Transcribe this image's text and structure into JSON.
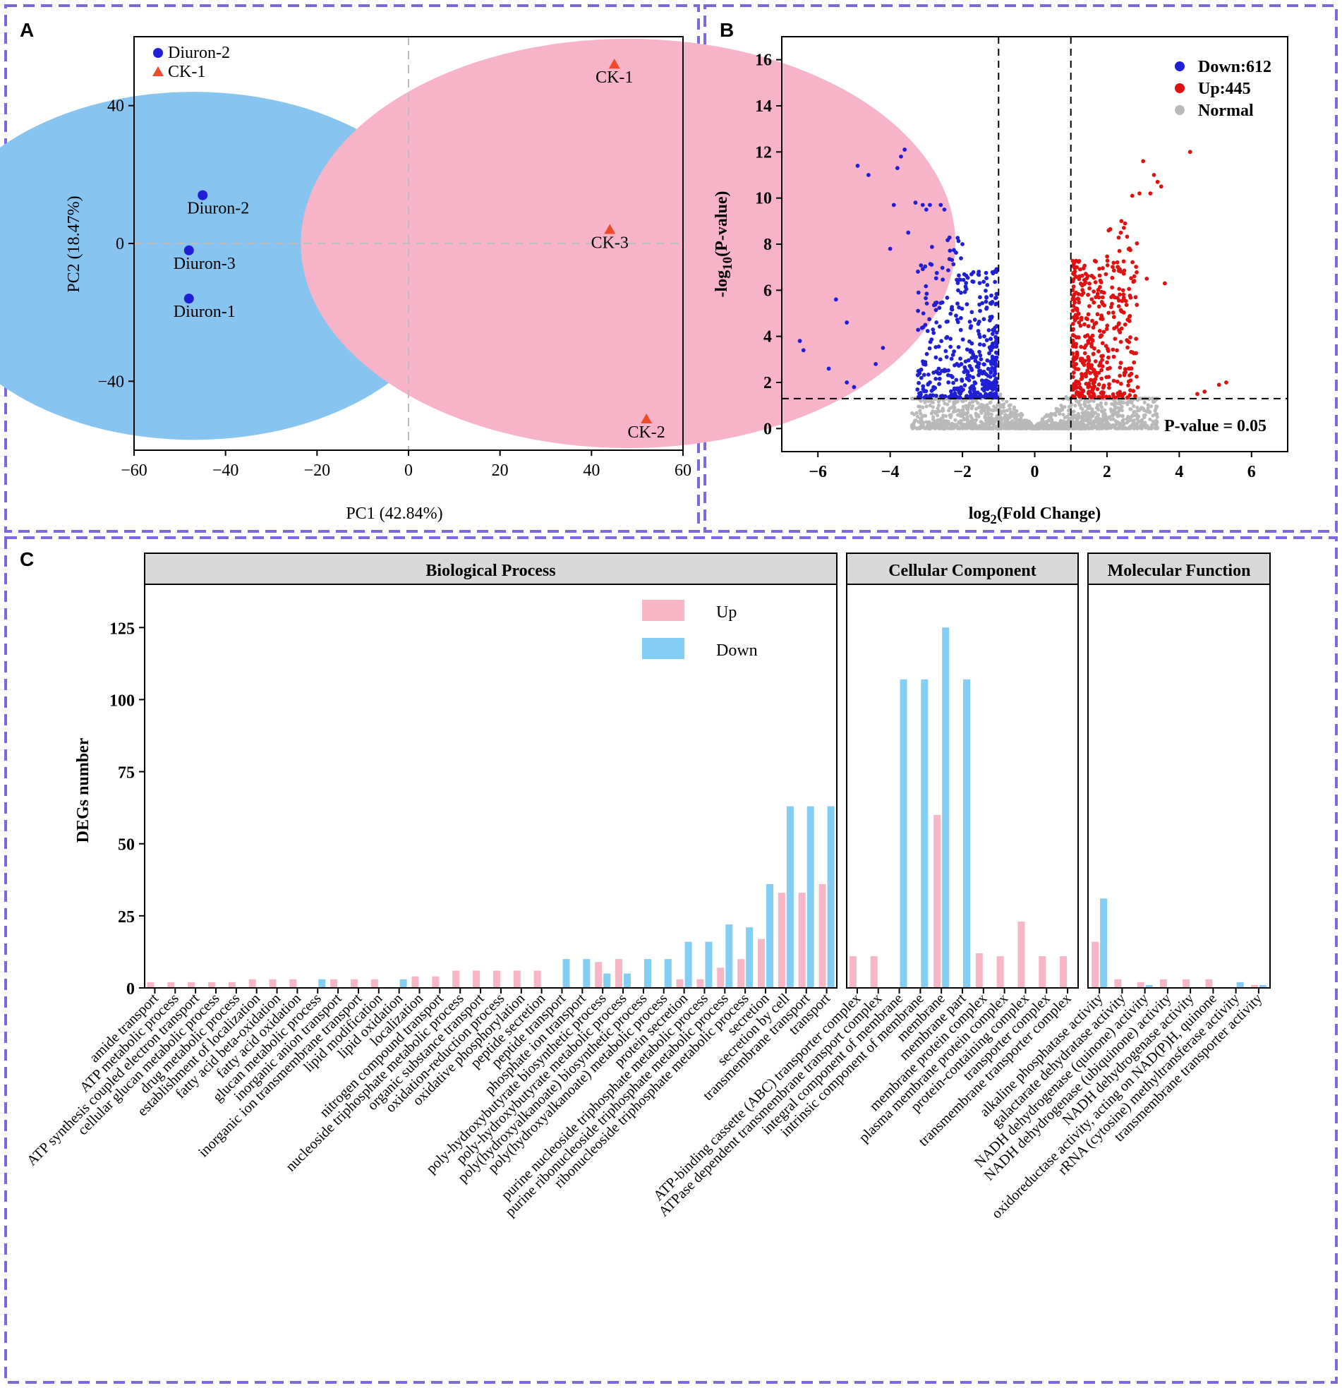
{
  "panels": {
    "a": "A",
    "b": "B",
    "c": "C"
  },
  "chart_data": [
    {
      "panel": "A",
      "type": "scatter",
      "xlabel": "PC1 (42.84%)",
      "ylabel": "PC2 (18.47%)",
      "xlim": [
        -60,
        60
      ],
      "ylim": [
        -60,
        60
      ],
      "xticks": [
        -60,
        -40,
        -20,
        0,
        20,
        40,
        60
      ],
      "yticks": [
        -40,
        0,
        40
      ],
      "legend": [
        {
          "label": "Diuron-2",
          "color": "#1f1fd6",
          "marker": "circle"
        },
        {
          "label": "CK-1",
          "color": "#ee4b2b",
          "marker": "triangle"
        }
      ],
      "groups": [
        {
          "name": "Diuron",
          "color": "#1f1fd6",
          "ellipse_color": "#87c4f0",
          "marker": "circle",
          "points": [
            {
              "label": "Diuron-2",
              "x": -45,
              "y": 14
            },
            {
              "label": "Diuron-3",
              "x": -48,
              "y": -2
            },
            {
              "label": "Diuron-1",
              "x": -48,
              "y": -16
            }
          ]
        },
        {
          "name": "CK",
          "color": "#ee4b2b",
          "ellipse_color": "#f7b3c7",
          "marker": "triangle",
          "points": [
            {
              "label": "CK-1",
              "x": 45,
              "y": 52
            },
            {
              "label": "CK-3",
              "x": 44,
              "y": 4
            },
            {
              "label": "CK-2",
              "x": 52,
              "y": -51
            }
          ]
        }
      ]
    },
    {
      "panel": "B",
      "type": "scatter",
      "xlabel": "log",
      "xlabel_sub": "2",
      "xlabel_rest": "(Fold Change)",
      "ylabel": "-log",
      "ylabel_sub": "10",
      "ylabel_rest": "(P-value)",
      "xlim": [
        -7,
        7
      ],
      "ylim": [
        -1,
        17
      ],
      "xticks": [
        -6,
        -4,
        -2,
        0,
        2,
        4,
        6
      ],
      "yticks": [
        0,
        2,
        4,
        6,
        8,
        10,
        12,
        14,
        16
      ],
      "fold_change_thresholds": [
        -1,
        1
      ],
      "pvalue_threshold_neglog10": 1.3,
      "pvalue_label": "P-value = 0.05",
      "legend": [
        {
          "label": "Down:612",
          "color": "#1f1fd6"
        },
        {
          "label": "Up:445",
          "color": "#e01010"
        },
        {
          "label": "Normal",
          "color": "#b9b9b9"
        }
      ],
      "counts": {
        "down": 612,
        "up": 445
      },
      "highlight_down_points": [
        [
          -6.5,
          3.8
        ],
        [
          -6.4,
          3.4
        ],
        [
          -5.7,
          2.6
        ],
        [
          -5.5,
          5.6
        ],
        [
          -5.2,
          4.6
        ],
        [
          -5.2,
          2.0
        ],
        [
          -5.0,
          1.8
        ],
        [
          -4.9,
          11.4
        ],
        [
          -4.6,
          11.0
        ],
        [
          -4.4,
          2.8
        ],
        [
          -4.2,
          3.5
        ],
        [
          -4.0,
          7.8
        ],
        [
          -3.9,
          9.7
        ],
        [
          -3.8,
          11.3
        ],
        [
          -3.7,
          11.8
        ],
        [
          -3.6,
          12.1
        ],
        [
          -3.5,
          8.5
        ],
        [
          -3.3,
          9.8
        ],
        [
          -3.1,
          9.7
        ],
        [
          -3.0,
          9.5
        ],
        [
          -2.9,
          9.7
        ],
        [
          -2.6,
          9.7
        ],
        [
          -2.5,
          9.5
        ],
        [
          -2.0,
          8.0
        ]
      ],
      "highlight_up_points": [
        [
          4.3,
          12.0
        ],
        [
          3.0,
          11.6
        ],
        [
          3.3,
          11.0
        ],
        [
          3.4,
          10.7
        ],
        [
          3.5,
          10.5
        ],
        [
          2.9,
          10.2
        ],
        [
          2.7,
          10.1
        ],
        [
          3.2,
          10.2
        ],
        [
          5.3,
          2.0
        ],
        [
          5.1,
          1.9
        ],
        [
          4.7,
          1.6
        ],
        [
          4.5,
          1.5
        ],
        [
          3.6,
          6.3
        ],
        [
          3.1,
          6.5
        ],
        [
          2.4,
          9.0
        ],
        [
          2.5,
          8.9
        ]
      ]
    },
    {
      "panel": "C",
      "type": "bar",
      "ylabel": "DEGs number",
      "ylim": [
        0,
        140
      ],
      "yticks": [
        0,
        25,
        50,
        75,
        100,
        125
      ],
      "legend": [
        {
          "label": "Up",
          "color": "#f7b6c5"
        },
        {
          "label": "Down",
          "color": "#84cdf3"
        }
      ],
      "facets": [
        {
          "title": "Biological Process",
          "title_color": "#1a1ab8",
          "categories": [
            "amide transport",
            "ATP metabolic process",
            "ATP synthesis coupled electron transport",
            "cellular glucan metabolic process",
            "drug metabolic process",
            "establishment of localization",
            "fatty acid beta-oxidation",
            "fatty acid oxidation",
            "glucan metabolic process",
            "inorganic anion transport",
            "inorganic ion transmembrane transport",
            "lipid modification",
            "lipid oxidation",
            "localization",
            "nitrogen compound transport",
            "nucleoside triphosphate metabolic process",
            "organic substance transport",
            "oxidation-reduction process",
            "oxidative phosphorylation",
            "peptide secretion",
            "peptide transport",
            "phosphate ion transport",
            "poly-hydroxybutyrate biosynthetic process",
            "poly-hydroxybutyrate metabolic process",
            "poly(hydroxyalkanoate) biosynthetic process",
            "poly(hydroxyalkanoate) metabolic process",
            "protein secretion",
            "purine nucleoside triphosphate metabolic process",
            "purine ribonucleoside triphosphate metabolic process",
            "ribonucleoside triphosphate metabolic process",
            "secretion",
            "secretion by cell",
            "transmembrane transport",
            "transport"
          ],
          "up": [
            2,
            2,
            2,
            2,
            2,
            3,
            3,
            3,
            0,
            3,
            3,
            3,
            0,
            4,
            4,
            6,
            6,
            6,
            6,
            6,
            0,
            0,
            9,
            10,
            0,
            0,
            3,
            3,
            7,
            10,
            17,
            33,
            33,
            36
          ],
          "down": [
            0,
            0,
            0,
            0,
            0,
            0,
            0,
            0,
            3,
            0,
            0,
            0,
            3,
            0,
            0,
            0,
            0,
            0,
            0,
            0,
            10,
            10,
            5,
            5,
            10,
            10,
            16,
            16,
            22,
            21,
            36,
            63,
            63,
            63
          ]
        },
        {
          "title": "Cellular Component",
          "title_color": "#c8141e",
          "categories": [
            "ATP-binding cassette (ABC) transporter complex",
            "ATPase dependent transmembrane transport complex",
            "integral component of membrane",
            "intrinsic component of membrane",
            "membrane",
            "membrane part",
            "membrane protein complex",
            "plasma membrane protein complex",
            "protein-containing complex",
            "transporter complex",
            "transmembrane transporter complex"
          ],
          "up": [
            11,
            11,
            0,
            0,
            60,
            0,
            12,
            11,
            23,
            11,
            11
          ],
          "down": [
            0,
            0,
            107,
            107,
            125,
            107,
            0,
            0,
            0,
            0,
            0
          ]
        },
        {
          "title": "Molecular Function",
          "title_color": "#177a17",
          "categories": [
            "alkaline phosphatase activity",
            "galactarate dehydratase activity",
            "NADH dehydrogenase (quinone) activity",
            "NADH dehydrogenase (ubiquinone) activity",
            "NADH dehydrogenase activity",
            "oxidoreductase activity, acting on NAD(P)H, quinone",
            "rRNA (cytosine) methyltransferase activity",
            "transmembrane transporter activity"
          ],
          "up": [
            16,
            3,
            2,
            3,
            3,
            3,
            0,
            1
          ],
          "down": [
            31,
            0,
            1,
            0,
            0,
            0,
            2,
            1
          ]
        }
      ]
    }
  ]
}
